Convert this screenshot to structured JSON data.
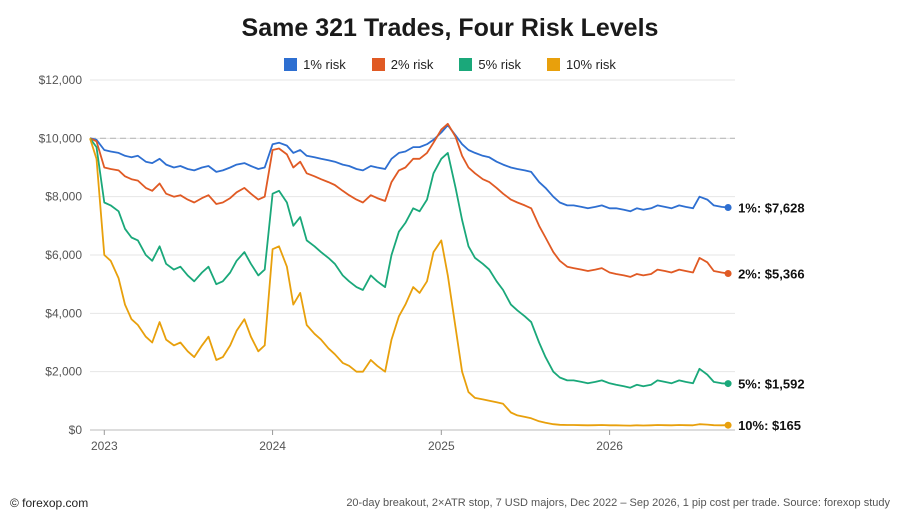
{
  "chart_data": {
    "type": "line",
    "title": "Same 321 Trades, Four Risk Levels",
    "xlabel": "",
    "ylabel": "",
    "ylim": [
      0,
      12000
    ],
    "yticks": [
      0,
      2000,
      4000,
      6000,
      8000,
      10000,
      12000
    ],
    "ytick_labels": [
      "$0",
      "$2,000",
      "$4,000",
      "$6,000",
      "$8,000",
      "$10,000",
      "$12,000"
    ],
    "xlim": [
      "2022-12-01",
      "2026-09-30"
    ],
    "xticks": [
      "2023-01-01",
      "2024-01-01",
      "2025-01-01",
      "2026-01-01"
    ],
    "xtick_labels": [
      "2023",
      "2024",
      "2025",
      "2026"
    ],
    "reference_line": 10000,
    "grid": "horizontal",
    "legend_position": "top-center",
    "x": [
      "2022-12-01",
      "2022-12-15",
      "2023-01-01",
      "2023-01-15",
      "2023-02-01",
      "2023-02-15",
      "2023-03-01",
      "2023-03-15",
      "2023-04-01",
      "2023-04-15",
      "2023-05-01",
      "2023-05-15",
      "2023-06-01",
      "2023-06-15",
      "2023-07-01",
      "2023-07-15",
      "2023-08-01",
      "2023-08-15",
      "2023-09-01",
      "2023-09-15",
      "2023-10-01",
      "2023-10-15",
      "2023-11-01",
      "2023-11-15",
      "2023-12-01",
      "2023-12-15",
      "2024-01-01",
      "2024-01-15",
      "2024-02-01",
      "2024-02-15",
      "2024-03-01",
      "2024-03-15",
      "2024-04-01",
      "2024-04-15",
      "2024-05-01",
      "2024-05-15",
      "2024-06-01",
      "2024-06-15",
      "2024-07-01",
      "2024-07-15",
      "2024-08-01",
      "2024-08-15",
      "2024-09-01",
      "2024-09-15",
      "2024-10-01",
      "2024-10-15",
      "2024-11-01",
      "2024-11-15",
      "2024-12-01",
      "2024-12-15",
      "2025-01-01",
      "2025-01-15",
      "2025-02-01",
      "2025-02-15",
      "2025-03-01",
      "2025-03-15",
      "2025-04-01",
      "2025-04-15",
      "2025-05-01",
      "2025-05-15",
      "2025-06-01",
      "2025-06-15",
      "2025-07-01",
      "2025-07-15",
      "2025-08-01",
      "2025-08-15",
      "2025-09-01",
      "2025-09-15",
      "2025-10-01",
      "2025-10-15",
      "2025-11-01",
      "2025-11-15",
      "2025-12-01",
      "2025-12-15",
      "2026-01-01",
      "2026-01-15",
      "2026-02-01",
      "2026-02-15",
      "2026-03-01",
      "2026-03-15",
      "2026-04-01",
      "2026-04-15",
      "2026-05-01",
      "2026-05-15",
      "2026-06-01",
      "2026-06-15",
      "2026-07-01",
      "2026-07-15",
      "2026-08-01",
      "2026-08-15",
      "2026-09-01",
      "2026-09-15"
    ],
    "series": [
      {
        "name": "1% risk",
        "color": "#2e6fd1",
        "end_label": "1%: $7,628",
        "values": [
          10000,
          9950,
          9600,
          9550,
          9500,
          9400,
          9350,
          9400,
          9200,
          9150,
          9300,
          9100,
          9000,
          9050,
          8950,
          8900,
          9000,
          9050,
          8850,
          8900,
          9000,
          9100,
          9150,
          9050,
          8950,
          9000,
          9800,
          9850,
          9750,
          9500,
          9600,
          9400,
          9350,
          9300,
          9250,
          9200,
          9100,
          9050,
          8950,
          8900,
          9050,
          9000,
          8950,
          9300,
          9500,
          9550,
          9700,
          9700,
          9800,
          9950,
          10200,
          10450,
          10100,
          9800,
          9600,
          9500,
          9400,
          9350,
          9200,
          9100,
          9000,
          8950,
          8900,
          8850,
          8500,
          8300,
          8000,
          7800,
          7700,
          7700,
          7650,
          7600,
          7650,
          7700,
          7600,
          7600,
          7550,
          7500,
          7600,
          7550,
          7600,
          7700,
          7650,
          7600,
          7700,
          7650,
          7600,
          8000,
          7900,
          7700,
          7650,
          7628
        ]
      },
      {
        "name": "2% risk",
        "color": "#e05a24",
        "end_label": "2%: $5,366",
        "values": [
          10000,
          9900,
          9000,
          8950,
          8900,
          8700,
          8600,
          8550,
          8300,
          8200,
          8450,
          8100,
          8000,
          8050,
          7900,
          7800,
          7950,
          8050,
          7750,
          7800,
          7950,
          8150,
          8300,
          8100,
          7900,
          8000,
          9600,
          9650,
          9450,
          9000,
          9200,
          8800,
          8700,
          8600,
          8500,
          8400,
          8200,
          8050,
          7900,
          7800,
          8050,
          7950,
          7850,
          8500,
          8900,
          9000,
          9300,
          9300,
          9500,
          9850,
          10300,
          10500,
          10050,
          9400,
          9000,
          8800,
          8600,
          8500,
          8300,
          8100,
          7900,
          7800,
          7700,
          7600,
          7000,
          6600,
          6100,
          5800,
          5600,
          5550,
          5500,
          5450,
          5500,
          5550,
          5400,
          5350,
          5300,
          5250,
          5350,
          5300,
          5350,
          5500,
          5450,
          5400,
          5500,
          5450,
          5400,
          5900,
          5750,
          5450,
          5400,
          5366
        ]
      },
      {
        "name": "5% risk",
        "color": "#1aa87a",
        "end_label": "5%: $1,592",
        "values": [
          10000,
          9700,
          7800,
          7700,
          7500,
          6900,
          6600,
          6500,
          6000,
          5800,
          6300,
          5700,
          5500,
          5600,
          5300,
          5100,
          5400,
          5600,
          5000,
          5100,
          5400,
          5800,
          6100,
          5700,
          5300,
          5500,
          8100,
          8200,
          7800,
          7000,
          7300,
          6500,
          6300,
          6100,
          5900,
          5700,
          5300,
          5100,
          4900,
          4800,
          5300,
          5100,
          4900,
          6000,
          6800,
          7100,
          7600,
          7500,
          7900,
          8800,
          9300,
          9500,
          8300,
          7200,
          6300,
          5900,
          5700,
          5500,
          5100,
          4800,
          4300,
          4100,
          3900,
          3700,
          3000,
          2500,
          2000,
          1800,
          1700,
          1700,
          1650,
          1600,
          1650,
          1700,
          1600,
          1550,
          1500,
          1450,
          1550,
          1500,
          1550,
          1700,
          1650,
          1600,
          1700,
          1650,
          1600,
          2100,
          1900,
          1650,
          1600,
          1592
        ]
      },
      {
        "name": "10% risk",
        "color": "#e8a00c",
        "end_label": "10%: $165",
        "values": [
          10000,
          9300,
          6000,
          5800,
          5200,
          4300,
          3800,
          3600,
          3200,
          3000,
          3700,
          3100,
          2900,
          3000,
          2700,
          2500,
          2900,
          3200,
          2400,
          2500,
          2900,
          3400,
          3800,
          3200,
          2700,
          2900,
          6200,
          6300,
          5600,
          4300,
          4700,
          3600,
          3300,
          3100,
          2800,
          2600,
          2300,
          2200,
          2000,
          2000,
          2400,
          2200,
          2000,
          3100,
          3900,
          4300,
          4900,
          4700,
          5100,
          6100,
          6500,
          5300,
          3500,
          2000,
          1300,
          1100,
          1050,
          1000,
          950,
          900,
          600,
          500,
          450,
          400,
          300,
          250,
          200,
          180,
          170,
          170,
          165,
          160,
          165,
          170,
          160,
          160,
          155,
          150,
          160,
          155,
          160,
          170,
          165,
          160,
          170,
          165,
          160,
          200,
          185,
          165,
          160,
          165
        ]
      }
    ]
  },
  "footer": {
    "credit": "© forexop.com",
    "note": "20-day breakout, 2×ATR stop, 7 USD majors, Dec 2022 – Sep 2026, 1 pip cost per trade. Source: forexop study"
  }
}
